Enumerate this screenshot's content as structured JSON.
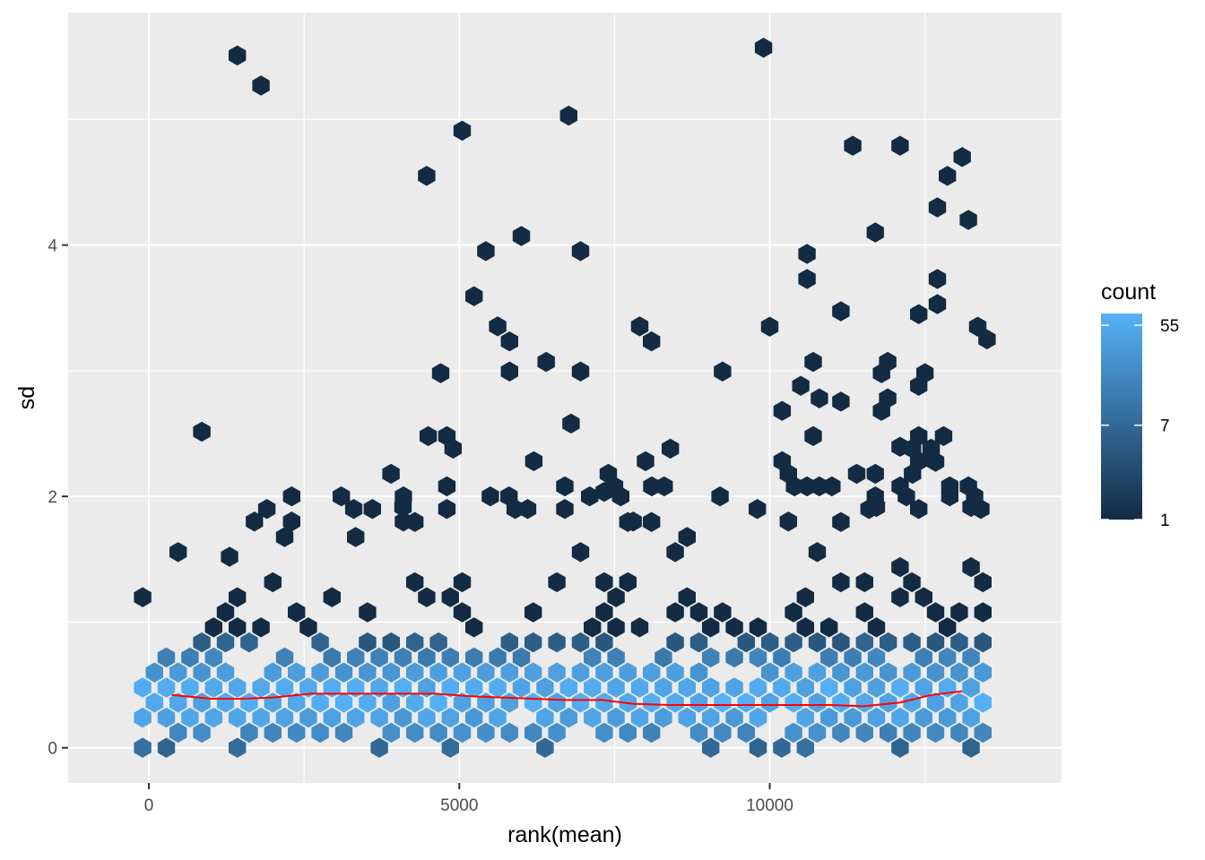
{
  "chart_data": {
    "type": "hexbin",
    "xlabel": "rank(mean)",
    "ylabel": "sd",
    "xlim": [
      -1300,
      14700
    ],
    "ylim": [
      -0.28,
      5.85
    ],
    "x_ticks": [
      0,
      5000,
      10000
    ],
    "x_tick_labels": [
      "0",
      "5000",
      "10000"
    ],
    "y_ticks": [
      0,
      2,
      4
    ],
    "y_tick_labels": [
      "0",
      "2",
      "4"
    ],
    "grid": true,
    "legend": {
      "title": "count",
      "position": "right",
      "scale": "log",
      "breaks": [
        1,
        7,
        55
      ],
      "break_labels": [
        "1",
        "7",
        "55"
      ],
      "colors": {
        "low": "#132b43",
        "high": "#56b1f7"
      },
      "max_count": 70
    },
    "trend_line": {
      "color": "#ff0000",
      "points": [
        [
          370,
          0.42
        ],
        [
          1000,
          0.39
        ],
        [
          1500,
          0.39
        ],
        [
          2000,
          0.4
        ],
        [
          2600,
          0.43
        ],
        [
          3100,
          0.43
        ],
        [
          3600,
          0.43
        ],
        [
          4200,
          0.43
        ],
        [
          4600,
          0.43
        ],
        [
          5200,
          0.41
        ],
        [
          5700,
          0.4
        ],
        [
          6200,
          0.39
        ],
        [
          6700,
          0.38
        ],
        [
          7300,
          0.38
        ],
        [
          7800,
          0.35
        ],
        [
          8400,
          0.34
        ],
        [
          8900,
          0.34
        ],
        [
          9400,
          0.34
        ],
        [
          10000,
          0.34
        ],
        [
          10500,
          0.34
        ],
        [
          11000,
          0.34
        ],
        [
          11500,
          0.33
        ],
        [
          12100,
          0.36
        ],
        [
          12600,
          0.42
        ],
        [
          13100,
          0.45
        ]
      ]
    },
    "dense_band": {
      "x_range": [
        -100,
        13600
      ],
      "core_sd": 0.4,
      "sparse_cells": [
        [
          -100,
          0.4
        ],
        [
          -100,
          0.6
        ],
        [
          -100,
          0.8
        ],
        [
          100,
          0.85
        ],
        [
          350,
          1.15
        ],
        [
          350,
          0.1
        ],
        [
          950,
          0.1
        ],
        [
          1450,
          0.1
        ],
        [
          1700,
          0.1
        ],
        [
          2100,
          0.1
        ],
        [
          2600,
          0.1
        ],
        [
          2850,
          0.1
        ],
        [
          3100,
          0.1
        ]
      ]
    },
    "outliers": [
      [
        9900,
        5.57
      ],
      [
        13100,
        4.7
      ],
      [
        12700,
        4.3
      ],
      [
        13200,
        4.2
      ],
      [
        11700,
        4.1
      ],
      [
        10600,
        3.93
      ],
      [
        10600,
        3.73
      ],
      [
        12700,
        3.73
      ],
      [
        12700,
        3.53
      ],
      [
        12400,
        3.45
      ],
      [
        10000,
        3.35
      ],
      [
        13350,
        3.35
      ],
      [
        13500,
        3.25
      ],
      [
        6400,
        3.07
      ],
      [
        10700,
        3.07
      ],
      [
        11900,
        3.07
      ],
      [
        4700,
        2.98
      ],
      [
        12500,
        2.98
      ],
      [
        11800,
        2.98
      ],
      [
        10500,
        2.88
      ],
      [
        12400,
        2.88
      ],
      [
        10800,
        2.78
      ],
      [
        11900,
        2.78
      ],
      [
        6800,
        2.58
      ],
      [
        10200,
        2.68
      ],
      [
        11800,
        2.68
      ],
      [
        4500,
        2.48
      ],
      [
        4800,
        2.48
      ],
      [
        10700,
        2.48
      ],
      [
        12400,
        2.48
      ],
      [
        12800,
        2.48
      ],
      [
        4900,
        2.38
      ],
      [
        8400,
        2.38
      ],
      [
        12600,
        2.38
      ],
      [
        12300,
        2.38
      ],
      [
        6200,
        2.28
      ],
      [
        8000,
        2.28
      ],
      [
        10200,
        2.28
      ],
      [
        12400,
        2.28
      ],
      [
        3900,
        2.18
      ],
      [
        7400,
        2.18
      ],
      [
        10300,
        2.18
      ],
      [
        11400,
        2.18
      ],
      [
        11700,
        2.18
      ],
      [
        12300,
        2.18
      ],
      [
        4800,
        2.08
      ],
      [
        6700,
        2.08
      ],
      [
        7500,
        2.08
      ],
      [
        8100,
        2.08
      ],
      [
        8300,
        2.08
      ],
      [
        10400,
        2.08
      ],
      [
        10600,
        2.08
      ],
      [
        10800,
        2.08
      ],
      [
        11000,
        2.08
      ],
      [
        12100,
        2.08
      ],
      [
        12900,
        2.08
      ],
      [
        13200,
        2.08
      ],
      [
        2300,
        2.0
      ],
      [
        3100,
        2.0
      ],
      [
        4100,
        2.0
      ],
      [
        5500,
        2.0
      ],
      [
        5800,
        2.0
      ],
      [
        7100,
        2.0
      ],
      [
        7600,
        2.0
      ],
      [
        9200,
        2.0
      ],
      [
        11700,
        2.0
      ],
      [
        12200,
        2.0
      ],
      [
        12900,
        2.0
      ],
      [
        13300,
        2.0
      ],
      [
        1900,
        1.9
      ],
      [
        3300,
        1.9
      ],
      [
        3600,
        1.9
      ],
      [
        4800,
        1.9
      ],
      [
        5900,
        1.9
      ],
      [
        6100,
        1.9
      ],
      [
        6700,
        1.9
      ],
      [
        9800,
        1.9
      ],
      [
        11600,
        1.9
      ],
      [
        12400,
        1.9
      ],
      [
        13400,
        1.9
      ],
      [
        1300,
        1.52
      ],
      [
        1700,
        1.8
      ],
      [
        2300,
        1.8
      ],
      [
        4100,
        1.8
      ],
      [
        7800,
        1.8
      ],
      [
        10300,
        1.8
      ]
    ]
  }
}
